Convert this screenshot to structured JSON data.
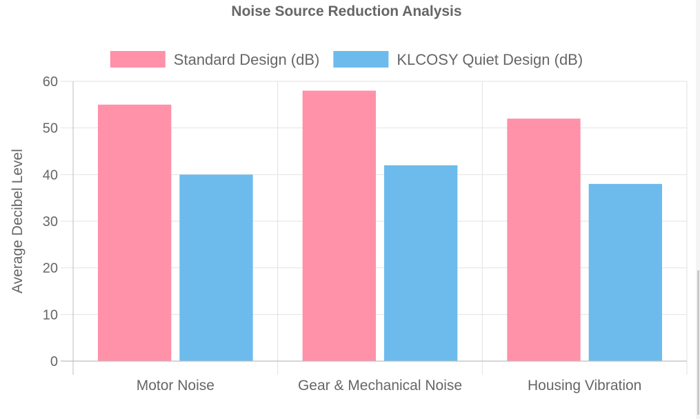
{
  "chart_data": {
    "type": "bar",
    "title": "Noise Source Reduction Analysis",
    "xlabel": "",
    "ylabel": "Average Decibel Level",
    "ylim": [
      0,
      60
    ],
    "yticks": [
      0,
      10,
      20,
      30,
      40,
      50,
      60
    ],
    "grid": true,
    "legend_position": "top",
    "categories": [
      "Motor Noise",
      "Gear & Mechanical Noise",
      "Housing Vibration"
    ],
    "series": [
      {
        "name": "Standard Design (dB)",
        "values": [
          55,
          58,
          52
        ],
        "color": "#ff91a8"
      },
      {
        "name": "KLCOSY Quiet Design (dB)",
        "values": [
          40,
          42,
          38
        ],
        "color": "#6dbbed"
      }
    ]
  },
  "colors": {
    "grid": "#e2e2e2",
    "axis": "#bdbdbd",
    "text": "#666666"
  }
}
